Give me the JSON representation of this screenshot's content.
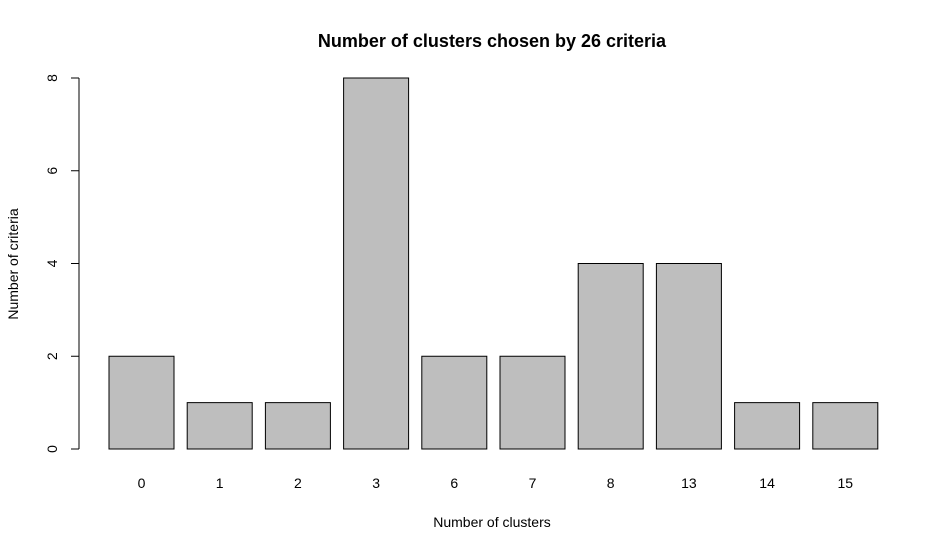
{
  "chart_data": {
    "type": "bar",
    "title": "Number of clusters chosen by 26 criteria",
    "xlabel": "Number of clusters",
    "ylabel": "Number of criteria",
    "categories": [
      "0",
      "1",
      "2",
      "3",
      "6",
      "7",
      "8",
      "13",
      "14",
      "15"
    ],
    "values": [
      2,
      1,
      1,
      8,
      2,
      2,
      4,
      4,
      1,
      1
    ],
    "ylim": [
      0,
      8
    ],
    "yticks": [
      "0",
      "2",
      "4",
      "6",
      "8"
    ],
    "bar_color": "#bebebe",
    "grid": false,
    "legend": "none"
  }
}
